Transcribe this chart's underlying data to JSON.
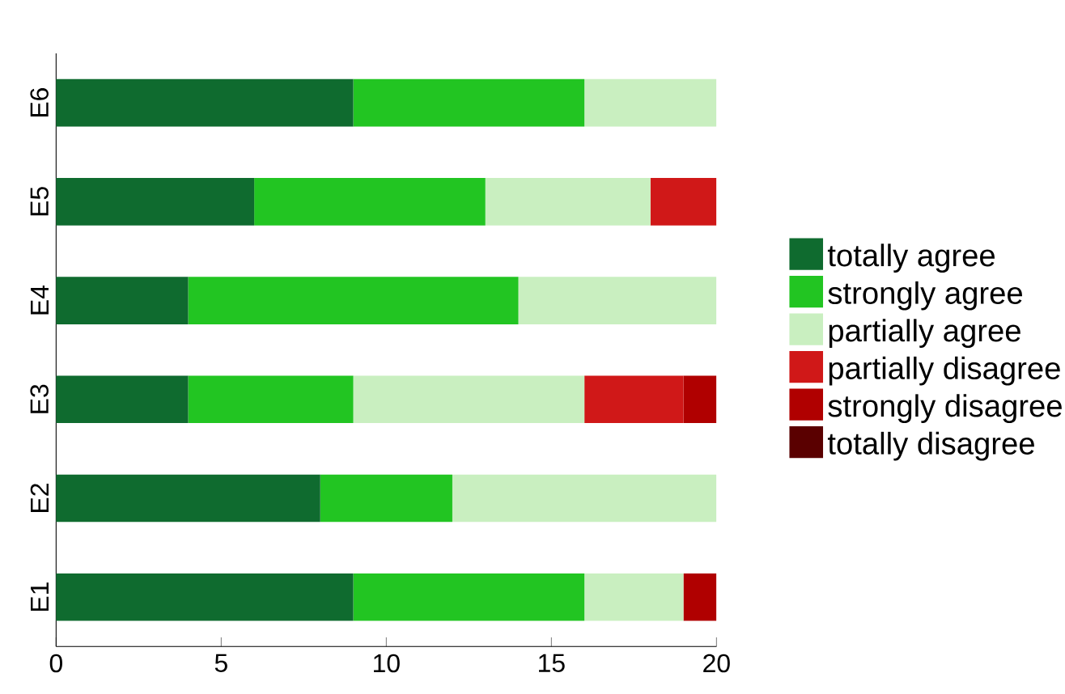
{
  "chart_data": {
    "type": "bar",
    "orientation": "horizontal",
    "stacked": true,
    "categories": [
      "E6",
      "E5",
      "E4",
      "E3",
      "E2",
      "E1"
    ],
    "series": [
      {
        "name": "totally agree",
        "color": "#0f6b2f",
        "values": [
          9,
          6,
          4,
          4,
          8,
          9
        ]
      },
      {
        "name": "strongly agree",
        "color": "#22c522",
        "values": [
          7,
          7,
          10,
          5,
          4,
          7
        ]
      },
      {
        "name": "partially agree",
        "color": "#c9efc0",
        "values": [
          4,
          5,
          6,
          7,
          8,
          3
        ]
      },
      {
        "name": "partially disagree",
        "color": "#d01818",
        "values": [
          0,
          2,
          0,
          3,
          0,
          0
        ]
      },
      {
        "name": "strongly disagree",
        "color": "#b00000",
        "values": [
          0,
          0,
          0,
          1,
          0,
          1
        ]
      },
      {
        "name": "totally disagree",
        "color": "#5a0000",
        "values": [
          0,
          0,
          0,
          0,
          0,
          0
        ]
      }
    ],
    "xlim": [
      0,
      20
    ],
    "xticks": [
      0,
      5,
      10,
      15,
      20
    ],
    "grid": false,
    "legend": "right"
  }
}
